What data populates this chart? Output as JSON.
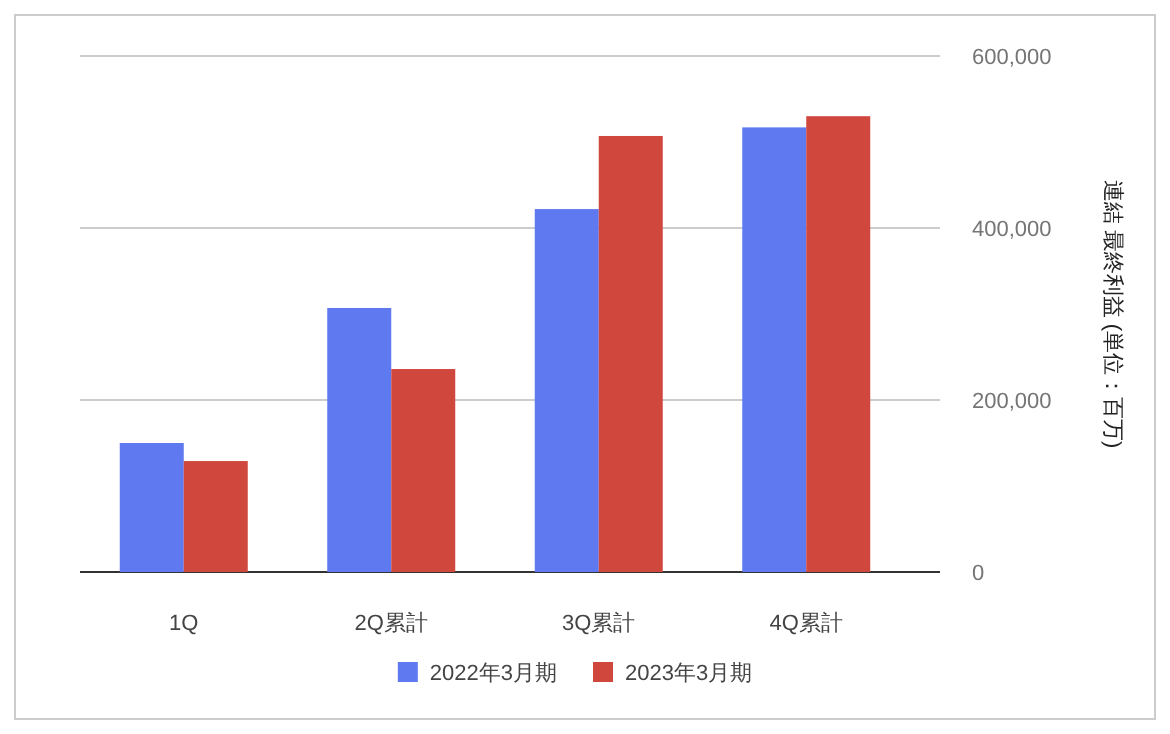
{
  "chart_data": {
    "type": "bar",
    "categories": [
      "1Q",
      "2Q累計",
      "3Q累計",
      "4Q累計"
    ],
    "series": [
      {
        "name": "2022年3月期",
        "color": "#5f7af0",
        "values": [
          150000,
          307000,
          422000,
          517000
        ]
      },
      {
        "name": "2023年3月期",
        "color": "#cf473d",
        "values": [
          129000,
          236000,
          507000,
          530000
        ]
      }
    ],
    "ylabel": "連結 最終利益 (単位：百万)",
    "ylim": [
      0,
      600000
    ],
    "yticks": [
      {
        "value": 0,
        "label": "0"
      },
      {
        "value": 200000,
        "label": "200,000"
      },
      {
        "value": 400000,
        "label": "400,000"
      },
      {
        "value": 600000,
        "label": "600,000"
      }
    ],
    "grid": "y",
    "legend": "bottom"
  }
}
